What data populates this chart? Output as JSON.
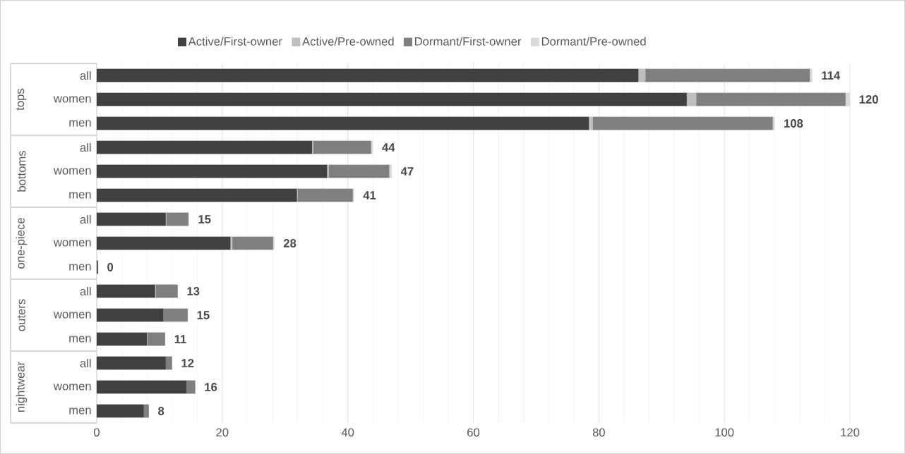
{
  "chart_data": {
    "type": "bar",
    "orientation": "horizontal",
    "stacked": true,
    "categories": [
      "all",
      "women",
      "men",
      "all",
      "women",
      "men",
      "all",
      "women",
      "men",
      "all",
      "women",
      "men",
      "all",
      "women",
      "men"
    ],
    "annotations": [
      "tops",
      "bottoms",
      "one-piece",
      "outers",
      "nightwear"
    ],
    "series": [
      {
        "name": "Active/First-owner",
        "color": "#404040",
        "values": [
          86.3,
          94.0,
          78.4,
          34.3,
          36.7,
          31.9,
          11.0,
          21.3,
          0.2,
          9.3,
          10.6,
          8.0,
          11.0,
          14.3,
          7.5
        ]
      },
      {
        "name": "Active/Pre-owned",
        "color": "#bfbfbf",
        "values": [
          1.1,
          1.5,
          0.6,
          0.2,
          0.3,
          0.1,
          0.1,
          0.3,
          0,
          0.1,
          null,
          0.1,
          0,
          0,
          0
        ]
      },
      {
        "name": "Dormant/First-owner",
        "color": "#7f7f7f",
        "values": [
          26.2,
          23.8,
          28.7,
          9.2,
          9.6,
          8.8,
          3.5,
          6.5,
          0,
          3.5,
          3.9,
          2.8,
          1.0,
          1.4,
          0.8
        ]
      },
      {
        "name": "Dormant/Pre-owned",
        "color": "#d9d9d9",
        "values": [
          0.4,
          0.7,
          0.3,
          0.3,
          0.4,
          0.2,
          0.1,
          0.2,
          0,
          0,
          0,
          0,
          0,
          0,
          0
        ]
      }
    ],
    "totals": [
      "114",
      "120",
      "108",
      "44",
      "47",
      "41",
      "15",
      "28",
      "0",
      "13",
      "15",
      "11",
      "12",
      "16",
      "8"
    ],
    "xlim": [
      0,
      120
    ],
    "xticks": [
      0,
      {
        "value": 4,
        "label": null
      },
      {
        "value": 8,
        "label": null
      },
      {
        "value": 12,
        "label": null
      },
      {
        "value": 16,
        "label": null
      },
      20,
      {
        "value": 24,
        "label": null
      },
      {
        "value": 28,
        "label": null
      },
      {
        "value": 32,
        "label": null
      },
      {
        "value": 36,
        "label": null
      },
      40,
      {
        "value": 44,
        "label": null
      },
      {
        "value": 48,
        "label": null
      },
      {
        "value": 52,
        "label": null
      },
      {
        "value": 56,
        "label": null
      },
      60,
      {
        "value": 64,
        "label": null
      },
      {
        "value": 68,
        "label": null
      },
      {
        "value": 72,
        "label": null
      },
      {
        "value": 76,
        "label": null
      },
      80,
      {
        "value": 84,
        "label": null
      },
      {
        "value": 88,
        "label": null
      },
      {
        "value": 92,
        "label": null
      },
      {
        "value": 96,
        "label": null
      },
      100,
      {
        "value": 104,
        "label": null
      },
      {
        "value": 108,
        "label": null
      },
      {
        "value": 112,
        "label": null
      },
      {
        "value": 116,
        "label": null
      },
      120
    ],
    "grid": true,
    "legend": "top"
  }
}
